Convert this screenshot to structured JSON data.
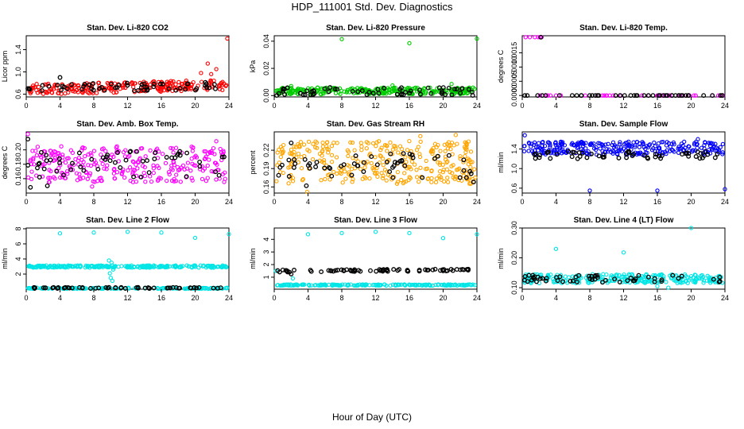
{
  "page": {
    "title": "HDP_111001  Std. Dev. Diagnostics",
    "xcaption": "Hour of Day (UTC)"
  },
  "chart_data": [
    {
      "type": "scatter",
      "title": "Stan. Dev. Li-820 CO2",
      "ylabel": "Licor ppm",
      "xlim": [
        0,
        24
      ],
      "ylim": [
        0.55,
        1.65
      ],
      "xticks": [
        0,
        4,
        8,
        12,
        16,
        20,
        24
      ],
      "yticks": [
        0.6,
        1.0,
        1.4
      ],
      "ytick_labels": [
        "0.6",
        "1.0",
        "1.4"
      ],
      "series": [
        {
          "color": "#ff0000",
          "band": [
            0.63,
            0.82
          ],
          "trend": 0.08,
          "count": 240,
          "outliers": [
            [
              23.8,
              1.6
            ],
            [
              21.5,
              1.15
            ],
            [
              22.5,
              1.05
            ],
            [
              20.7,
              0.98
            ],
            [
              21.9,
              0.96
            ]
          ]
        },
        {
          "color": "#000000",
          "band": [
            0.66,
            0.8
          ],
          "trend": 0.03,
          "count": 55,
          "outliers": [
            [
              4.0,
              0.9
            ],
            [
              0.2,
              0.7
            ]
          ]
        }
      ]
    },
    {
      "type": "scatter",
      "title": "Stan. Dev. Li-820 Pressure",
      "ylabel": "kPa",
      "xlim": [
        0,
        24
      ],
      "ylim": [
        -0.001,
        0.044
      ],
      "xticks": [
        0,
        4,
        8,
        12,
        16,
        20,
        24
      ],
      "yticks": [
        0.0,
        0.02,
        0.04
      ],
      "ytick_labels": [
        "0.00",
        "0.02",
        "0.04"
      ],
      "series": [
        {
          "color": "#00cc00",
          "band": [
            0.001,
            0.006
          ],
          "trend": 0,
          "count": 300,
          "outliers": [
            [
              8,
              0.0415
            ],
            [
              16,
              0.0385
            ],
            [
              24,
              0.0418
            ],
            [
              21,
              0.0085
            ],
            [
              14,
              0.0075
            ],
            [
              2,
              0.007
            ]
          ]
        },
        {
          "color": "#000000",
          "band": [
            0.0005,
            0.006
          ],
          "trend": 0,
          "count": 60,
          "outliers": [
            [
              0.3,
              0.0001
            ],
            [
              23.5,
              0.0001
            ]
          ]
        }
      ]
    },
    {
      "type": "scatter",
      "title": "Stan. Dev. Li-820 Temp.",
      "ylabel": "degrees C",
      "xlim": [
        0,
        24
      ],
      "ylim": [
        -5e-05,
        0.0021
      ],
      "xticks": [
        0,
        4,
        8,
        12,
        16,
        20,
        24
      ],
      "yticks": [
        0.0,
        0.0005,
        0.001,
        0.0015
      ],
      "ytick_labels": [
        "0.0000",
        "0.0005",
        "0.0010",
        "0.0015"
      ],
      "series": [
        {
          "color": "#ff00ff",
          "band": [
            0.0,
            0.0
          ],
          "trend": 0,
          "count": 40,
          "outliers": [
            [
              0.4,
              0.00205
            ],
            [
              0.9,
              0.00205
            ],
            [
              1.5,
              0.00205
            ],
            [
              1.9,
              0.00205
            ],
            [
              2.3,
              0.00205
            ],
            [
              2.1,
              0.00205
            ]
          ]
        },
        {
          "color": "#000000",
          "band": [
            0.0,
            0.0
          ],
          "trend": 0,
          "count": 45,
          "outliers": [
            [
              2.2,
              0.00205
            ]
          ]
        }
      ]
    },
    {
      "type": "scatter",
      "title": "Stan. Dev. Amb. Box Temp.",
      "ylabel": "degrees C",
      "xlim": [
        0,
        24
      ],
      "ylim": [
        0.14,
        0.225
      ],
      "xticks": [
        0,
        4,
        8,
        12,
        16,
        20,
        24
      ],
      "yticks": [
        0.16,
        0.18,
        0.2
      ],
      "ytick_labels": [
        "0.16",
        "0.18",
        "0.20"
      ],
      "series": [
        {
          "color": "#ff00ff",
          "band": [
            0.155,
            0.205
          ],
          "trend": 0,
          "count": 280,
          "outliers": [
            [
              0.2,
              0.222
            ],
            [
              7.8,
              0.149
            ],
            [
              22.5,
              0.212
            ]
          ]
        },
        {
          "color": "#000000",
          "band": [
            0.162,
            0.198
          ],
          "trend": 0,
          "count": 55,
          "outliers": [
            [
              0.2,
              0.215
            ],
            [
              0.5,
              0.148
            ],
            [
              2.5,
              0.15
            ]
          ]
        }
      ]
    },
    {
      "type": "scatter",
      "title": "Stan. Dev. Gas Stream RH",
      "ylabel": "percent",
      "xlim": [
        0,
        24
      ],
      "ylim": [
        0.15,
        0.25
      ],
      "xticks": [
        0,
        4,
        8,
        12,
        16,
        20,
        24
      ],
      "yticks": [
        0.16,
        0.19,
        0.22
      ],
      "ytick_labels": [
        "0.16",
        "0.19",
        "0.22"
      ],
      "series": [
        {
          "color": "#ffa500",
          "band": [
            0.165,
            0.235
          ],
          "trend": 0,
          "count": 320,
          "outliers": [
            [
              21.5,
              0.245
            ],
            [
              3.9,
              0.152
            ],
            [
              17.3,
              0.243
            ]
          ]
        },
        {
          "color": "#000000",
          "band": [
            0.175,
            0.215
          ],
          "trend": 0,
          "count": 55,
          "outliers": [
            [
              2.0,
              0.232
            ],
            [
              3.8,
              0.162
            ],
            [
              23.6,
              0.168
            ]
          ]
        }
      ]
    },
    {
      "type": "scatter",
      "title": "Stan. Dev. Sample Flow",
      "ylabel": "ml/min",
      "xlim": [
        0,
        24
      ],
      "ylim": [
        0.5,
        1.75
      ],
      "xticks": [
        0,
        4,
        8,
        12,
        16,
        20,
        24
      ],
      "yticks": [
        0.6,
        1.0,
        1.4
      ],
      "ytick_labels": [
        "0.6",
        "1.0",
        "1.4"
      ],
      "series": [
        {
          "color": "#0000ff",
          "band": [
            1.28,
            1.55
          ],
          "trend": 0,
          "count": 280,
          "outliers": [
            [
              8,
              0.55
            ],
            [
              16,
              0.55
            ],
            [
              24,
              0.58
            ],
            [
              0.3,
              1.68
            ],
            [
              20.8,
              1.6
            ]
          ]
        },
        {
          "color": "#000000",
          "band": [
            1.2,
            1.35
          ],
          "trend": 0,
          "count": 55,
          "outliers": []
        }
      ]
    },
    {
      "type": "scatter",
      "title": "Stan. Dev. Line 2 Flow",
      "ylabel": "ml/min",
      "xlim": [
        0,
        24
      ],
      "ylim": [
        0,
        8.1
      ],
      "xticks": [
        0,
        4,
        8,
        12,
        16,
        20,
        24
      ],
      "yticks": [
        2,
        4,
        6,
        8
      ],
      "ytick_labels": [
        "2",
        "4",
        "6",
        "8"
      ],
      "series": [
        {
          "color": "#00e5e5",
          "band": [
            2.85,
            3.15
          ],
          "trend": 0,
          "count": 230,
          "outliers": [
            [
              4,
              7.4
            ],
            [
              8,
              7.5
            ],
            [
              12,
              7.6
            ],
            [
              16,
              7.5
            ],
            [
              20,
              6.8
            ],
            [
              24,
              7.3
            ],
            [
              9.8,
              3.8
            ],
            [
              10.1,
              3.5
            ],
            [
              10.3,
              2.6
            ],
            [
              10.0,
              1.5
            ],
            [
              10.2,
              1.1
            ],
            [
              9.9,
              2.1
            ]
          ]
        },
        {
          "color": "#00e5e5",
          "band": [
            0.05,
            0.2
          ],
          "trend": 0,
          "count": 140,
          "outliers": []
        },
        {
          "color": "#000000",
          "band": [
            0.1,
            0.25
          ],
          "trend": 0,
          "count": 55,
          "outliers": []
        }
      ]
    },
    {
      "type": "scatter",
      "title": "Stan. Dev. Line 3 Flow",
      "ylabel": "ml/min",
      "xlim": [
        0,
        24
      ],
      "ylim": [
        0.05,
        4.9
      ],
      "xticks": [
        0,
        4,
        8,
        12,
        16,
        20,
        24
      ],
      "yticks": [
        1,
        2,
        3,
        4
      ],
      "ytick_labels": [
        "1",
        "2",
        "3",
        "4"
      ],
      "series": [
        {
          "color": "#00e5e5",
          "band": [
            0.33,
            0.43
          ],
          "trend": 0,
          "count": 200,
          "outliers": [
            [
              4,
              4.4
            ],
            [
              8,
              4.5
            ],
            [
              12,
              4.6
            ],
            [
              16,
              4.5
            ],
            [
              20,
              4.1
            ],
            [
              24,
              4.4
            ],
            [
              2.2,
              0.9
            ],
            [
              0.2,
              1.5
            ]
          ]
        },
        {
          "color": "#000000",
          "band": [
            1.45,
            1.62
          ],
          "trend": 0.1,
          "count": 70,
          "outliers": [
            [
              2.0,
              1.25
            ],
            [
              1.8,
              1.4
            ]
          ]
        }
      ]
    },
    {
      "type": "scatter",
      "title": "Stan. Dev. Line 4 (LT) Flow",
      "ylabel": "ml/min",
      "xlim": [
        0,
        24
      ],
      "ylim": [
        0.095,
        0.3
      ],
      "xticks": [
        0,
        4,
        8,
        12,
        16,
        20,
        24
      ],
      "yticks": [
        0.1,
        0.2,
        0.3
      ],
      "ytick_labels": [
        "0.10",
        "0.20",
        "0.30"
      ],
      "series": [
        {
          "color": "#00e5e5",
          "band": [
            0.115,
            0.145
          ],
          "trend": 0,
          "count": 260,
          "outliers": [
            [
              4,
              0.23
            ],
            [
              12,
              0.218
            ],
            [
              20,
              0.3
            ],
            [
              16,
              0.105
            ],
            [
              17.3,
              0.1
            ]
          ]
        },
        {
          "color": "#000000",
          "band": [
            0.118,
            0.142
          ],
          "trend": 0,
          "count": 55,
          "outliers": []
        }
      ]
    }
  ]
}
